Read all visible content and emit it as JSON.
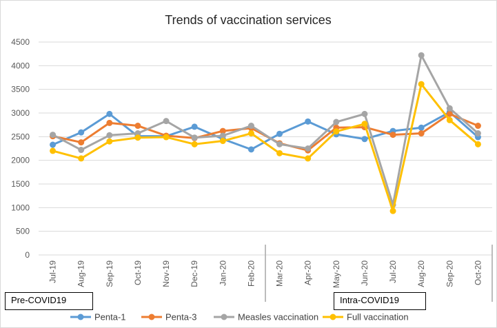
{
  "chart_data": {
    "type": "line",
    "title": "Trends of vaccination services",
    "xlabel": "",
    "ylabel": "",
    "categories": [
      "Jul-19",
      "Aug-19",
      "Sep-19",
      "Oct-19",
      "Nov-19",
      "Dec-19",
      "Jan-20",
      "Feb-20",
      "Mar-20",
      "Apr-20",
      "May-20",
      "Jun-20",
      "Jul-20",
      "Aug-20",
      "Sep-20",
      "Oct-20"
    ],
    "ylim": [
      0,
      4500
    ],
    "yticks": [
      0,
      500,
      1000,
      1500,
      2000,
      2500,
      3000,
      3500,
      4000,
      4500
    ],
    "grid": true,
    "legend_position": "bottom",
    "series": [
      {
        "name": "Penta-1",
        "color": "#5b9bd5",
        "values": [
          2330,
          2590,
          2980,
          2510,
          2510,
          2710,
          2450,
          2230,
          2560,
          2820,
          2550,
          2450,
          2620,
          2690,
          3020,
          2490
        ]
      },
      {
        "name": "Penta-3",
        "color": "#ed7d31",
        "values": [
          2510,
          2380,
          2790,
          2730,
          2520,
          2470,
          2620,
          2680,
          2360,
          2210,
          2690,
          2700,
          2540,
          2570,
          2980,
          2730
        ]
      },
      {
        "name": "Measles vaccination",
        "color": "#a5a5a5",
        "values": [
          2540,
          2220,
          2530,
          2570,
          2830,
          2480,
          2520,
          2730,
          2340,
          2250,
          2810,
          2980,
          1060,
          4220,
          3100,
          2570
        ]
      },
      {
        "name": "Full vaccination",
        "color": "#ffc000",
        "values": [
          2200,
          2040,
          2400,
          2480,
          2490,
          2340,
          2410,
          2570,
          2150,
          2040,
          2610,
          2770,
          930,
          3610,
          2850,
          2340
        ]
      }
    ]
  },
  "annotations": {
    "pre_covid": "Pre-COVID19",
    "intra_covid": "Intra-COVID19"
  }
}
